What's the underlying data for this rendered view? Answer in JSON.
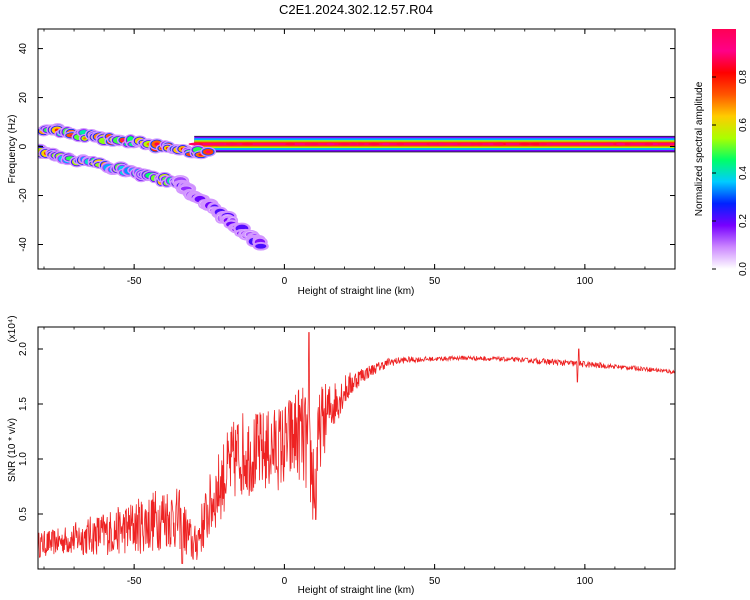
{
  "title": "C2E1.2024.302.12.57.R04",
  "chart_data": [
    {
      "type": "heatmap",
      "name": "spectrogram",
      "xlabel": "Height of straight line (km)",
      "ylabel": "Frequency (Hz)",
      "xlim": [
        -82,
        130
      ],
      "ylim": [
        -50,
        48
      ],
      "xticks": [
        -50,
        0,
        50,
        100
      ],
      "xtick_labels": [
        "-50",
        "0",
        "50",
        "100"
      ],
      "yticks": [
        -40,
        -20,
        0,
        20,
        40
      ],
      "ytick_labels": [
        "-40",
        "-20",
        "0",
        "20",
        "40"
      ],
      "colorbar": {
        "label": "Normalized spectral amplitude",
        "range": [
          0,
          1
        ],
        "ticks": [
          0.0,
          0.2,
          0.4,
          0.6,
          0.8
        ],
        "tick_labels": [
          "0.0",
          "0.2",
          "0.4",
          "0.6",
          "0.8"
        ],
        "colors": [
          "#ffffff",
          "#cc88ff",
          "#7700ff",
          "#0022ff",
          "#00ccff",
          "#00ff66",
          "#aaff00",
          "#ffcc00",
          "#ff5500",
          "#ff0000",
          "#ff0088",
          "#ff0055"
        ]
      },
      "features": [
        {
          "name": "main carrier",
          "x_range": [
            -30,
            130
          ],
          "freq": 1,
          "amplitude": 0.95
        },
        {
          "name": "upper branch",
          "x_from": -80,
          "x_to": -25,
          "freq_from": 7,
          "freq_to": -3,
          "amplitude": 0.7
        },
        {
          "name": "lower branch",
          "x_from": -82,
          "x_to": -35,
          "freq_from": -2,
          "freq_to": -15,
          "amplitude": 0.6
        },
        {
          "name": "descending tail",
          "x_from": -35,
          "x_to": -8,
          "freq_from": -15,
          "freq_to": -40,
          "amplitude": 0.2
        }
      ]
    },
    {
      "type": "line",
      "name": "snr",
      "xlabel": "Height of straight line (km)",
      "ylabel": "SNR (10 * v/v)",
      "y_multiplier": "(x10⁴)",
      "xlim": [
        -82,
        130
      ],
      "ylim": [
        0,
        2.2
      ],
      "xticks": [
        -50,
        0,
        50,
        100
      ],
      "xtick_labels": [
        "-50",
        "0",
        "50",
        "100"
      ],
      "yticks": [
        0.5,
        1.0,
        1.5,
        2.0
      ],
      "ytick_labels": [
        "0.5",
        "1.0",
        "1.5",
        "2.0"
      ],
      "color": "#ee2222",
      "x": [
        -82,
        -75,
        -65,
        -55,
        -45,
        -40,
        -35,
        -30,
        -25,
        -20,
        -15,
        -10,
        -5,
        0,
        5,
        8,
        10,
        12,
        15,
        20,
        25,
        30,
        35,
        40,
        50,
        60,
        70,
        80,
        90,
        95,
        100,
        110,
        120,
        130
      ],
      "y": [
        0.22,
        0.25,
        0.3,
        0.35,
        0.42,
        0.48,
        0.45,
        0.2,
        0.55,
        0.85,
        1.05,
        1.05,
        1.08,
        1.12,
        1.25,
        1.1,
        0.75,
        1.3,
        1.45,
        1.62,
        1.75,
        1.82,
        1.88,
        1.9,
        1.91,
        1.92,
        1.91,
        1.9,
        1.88,
        1.87,
        1.86,
        1.84,
        1.82,
        1.79
      ],
      "noise": [
        0.12,
        0.12,
        0.18,
        0.22,
        0.28,
        0.3,
        0.28,
        0.18,
        0.3,
        0.35,
        0.4,
        0.38,
        0.38,
        0.4,
        0.45,
        0.5,
        0.45,
        0.38,
        0.25,
        0.15,
        0.08,
        0.05,
        0.04,
        0.03,
        0.02,
        0.02,
        0.02,
        0.02,
        0.03,
        0.03,
        0.03,
        0.02,
        0.02,
        0.02
      ],
      "spikes": [
        {
          "x": 8.2,
          "y": 2.15
        },
        {
          "x": 10.5,
          "y": 0.45
        },
        {
          "x": -34,
          "y": 0.05
        },
        {
          "x": 98,
          "y": 2.0
        },
        {
          "x": 97.5,
          "y": 1.7
        }
      ]
    }
  ]
}
